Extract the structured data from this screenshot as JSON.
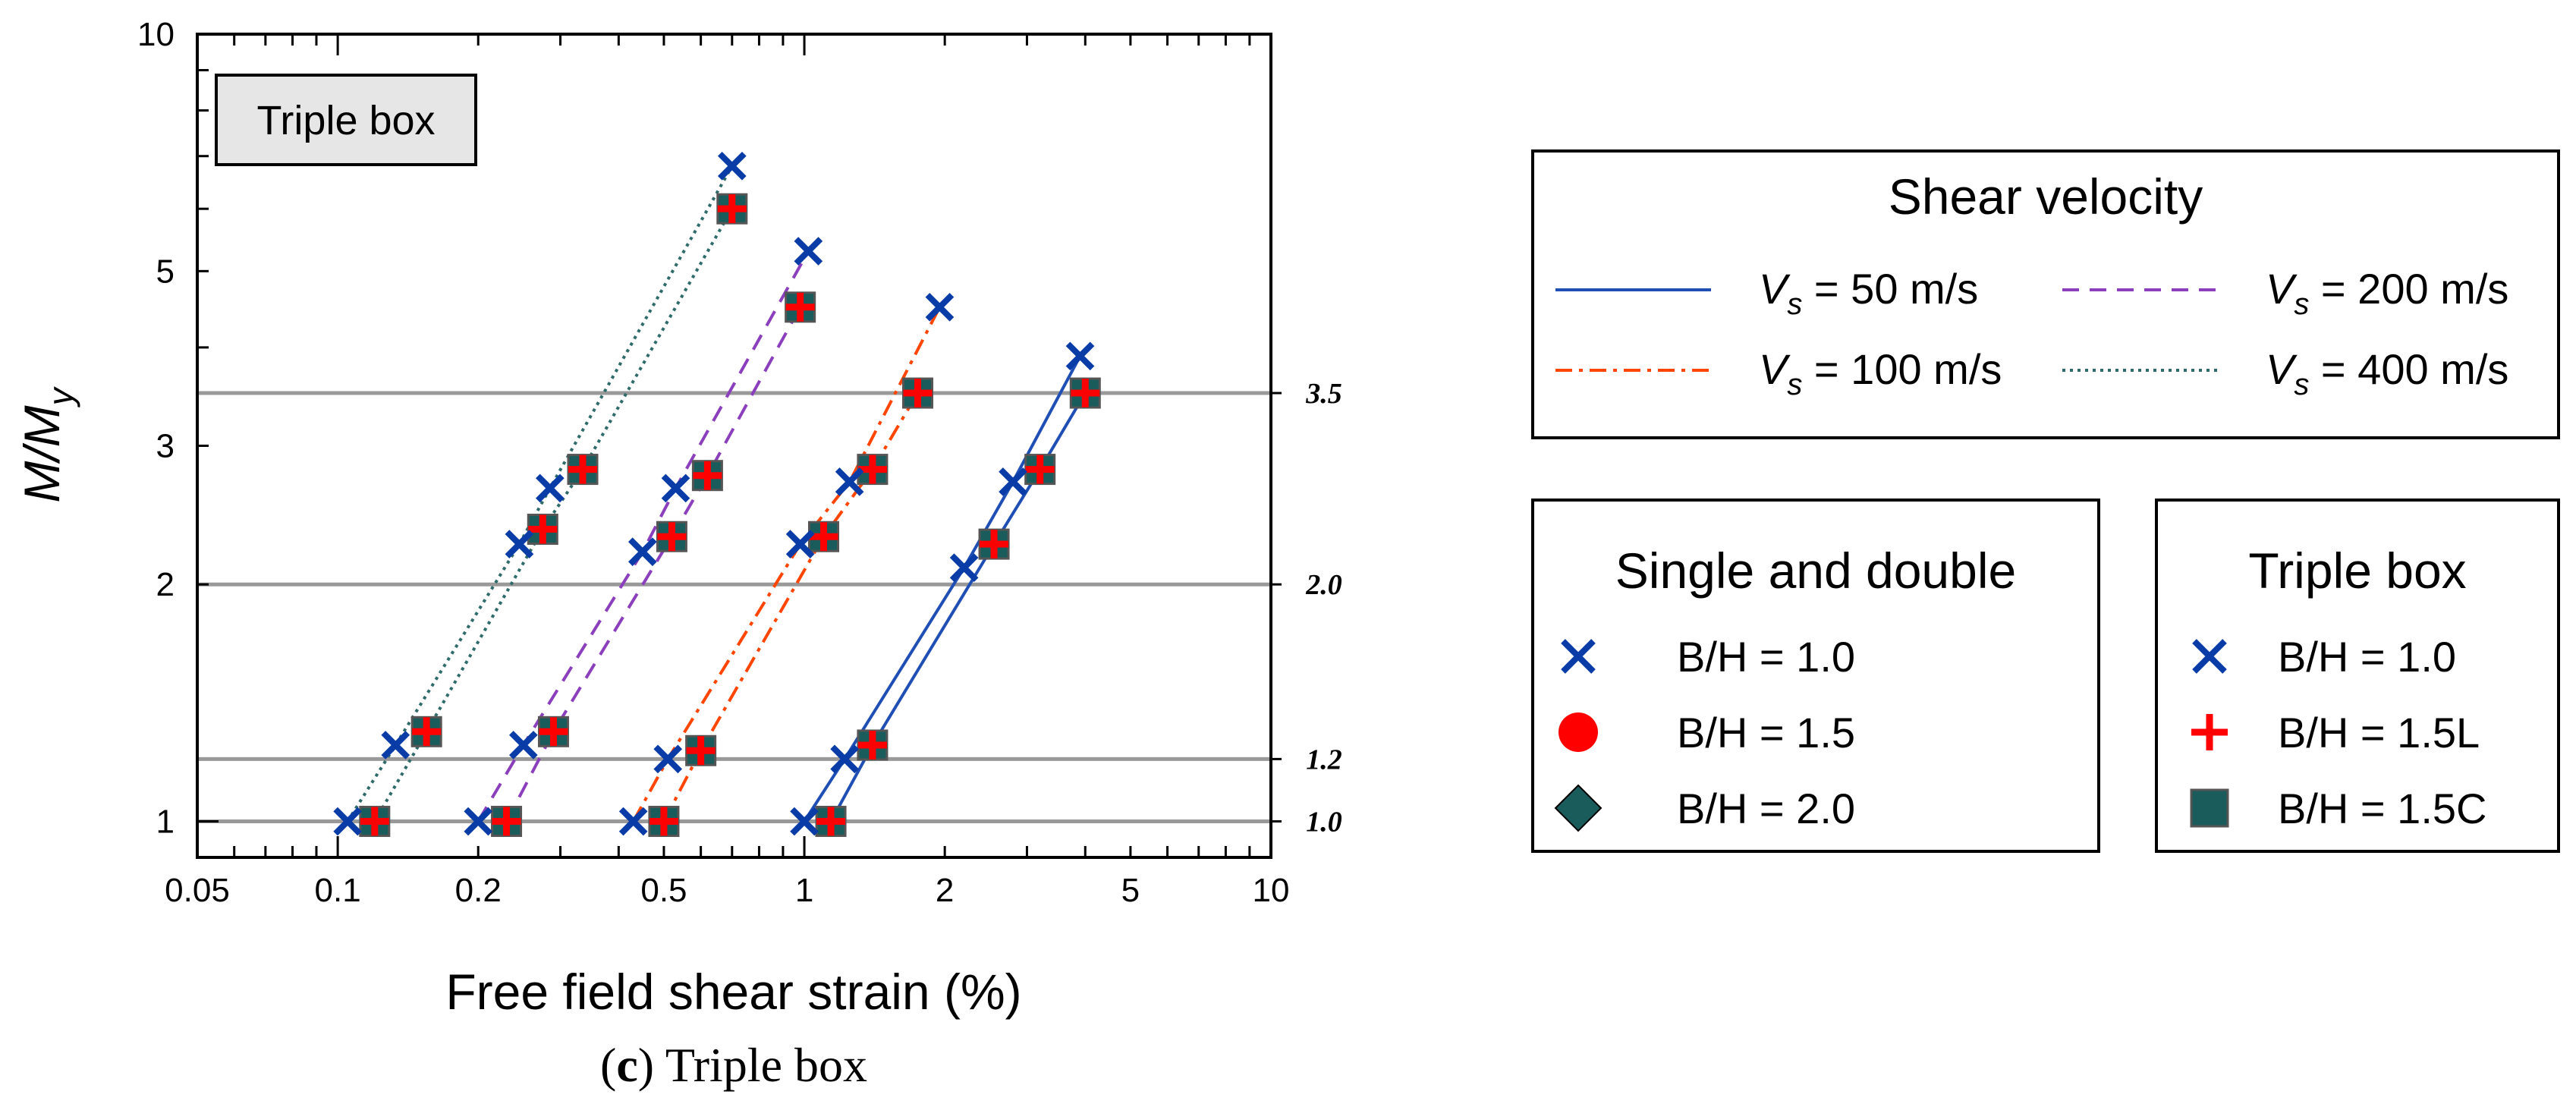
{
  "chart_data": {
    "type": "scatter",
    "panel_label": "Triple box",
    "xscale": "log",
    "yscale": "log",
    "xlim": [
      0.05,
      10
    ],
    "ylim": [
      0.9,
      10
    ],
    "xlabel": "Free field shear strain (%)",
    "ylabel": {
      "main": "M/M",
      "sub": "y"
    },
    "x_ticks": [
      "0.05",
      "0.1",
      "0.2",
      "0.5",
      "1",
      "2",
      "5",
      "10"
    ],
    "y_ticks": [
      "1",
      "2",
      "3",
      "5",
      "10"
    ],
    "reference_lines": [
      {
        "y": 1.0,
        "label": "1.0"
      },
      {
        "y": 1.2,
        "label": "1.2"
      },
      {
        "y": 2.0,
        "label": "2.0"
      },
      {
        "y": 3.5,
        "label": "3.5"
      }
    ],
    "series": [
      {
        "vs": "50 m/s",
        "color": "#1f4fb4",
        "dash": "solid",
        "bh10": [
          [
            1.0,
            1.0
          ],
          [
            1.22,
            1.2
          ],
          [
            2.2,
            2.1
          ],
          [
            2.8,
            2.7
          ],
          [
            3.9,
            3.9
          ]
        ],
        "bh15": [
          [
            1.14,
            1.0
          ],
          [
            1.4,
            1.25
          ],
          [
            2.55,
            2.25
          ],
          [
            3.2,
            2.8
          ],
          [
            4.0,
            3.5
          ]
        ]
      },
      {
        "vs": "100 m/s",
        "color": "#ff4500",
        "dash": "dashdot",
        "bh10": [
          [
            0.43,
            1.0
          ],
          [
            0.51,
            1.2
          ],
          [
            0.98,
            2.25
          ],
          [
            1.25,
            2.7
          ],
          [
            1.95,
            4.5
          ]
        ],
        "bh15": [
          [
            0.5,
            1.0
          ],
          [
            0.6,
            1.23
          ],
          [
            1.1,
            2.3
          ],
          [
            1.4,
            2.8
          ],
          [
            1.75,
            3.5
          ]
        ]
      },
      {
        "vs": "200 m/s",
        "color": "#8b3fbd",
        "dash": "dashed",
        "bh10": [
          [
            0.2,
            1.0
          ],
          [
            0.25,
            1.25
          ],
          [
            0.45,
            2.2
          ],
          [
            0.53,
            2.65
          ],
          [
            1.02,
            5.3
          ]
        ],
        "bh15": [
          [
            0.23,
            1.0
          ],
          [
            0.29,
            1.3
          ],
          [
            0.52,
            2.3
          ],
          [
            0.62,
            2.75
          ],
          [
            0.98,
            4.5
          ]
        ]
      },
      {
        "vs": "400 m/s",
        "color": "#2f6b6b",
        "dash": "dotted",
        "bh10": [
          [
            0.105,
            1.0
          ],
          [
            0.133,
            1.25
          ],
          [
            0.245,
            2.25
          ],
          [
            0.285,
            2.65
          ],
          [
            0.7,
            6.8
          ]
        ],
        "bh15": [
          [
            0.12,
            1.0
          ],
          [
            0.155,
            1.3
          ],
          [
            0.275,
            2.35
          ],
          [
            0.335,
            2.8
          ],
          [
            0.7,
            6.0
          ]
        ]
      }
    ]
  },
  "legend_shear": {
    "title": "Shear velocity",
    "prefix": "V",
    "sub": "s",
    "entries": [
      " = 50 m/s",
      " = 100 m/s",
      " = 200 m/s",
      " = 400 m/s"
    ]
  },
  "legend_single": {
    "title": "Single and double",
    "entries": [
      "B/H = 1.0",
      "B/H = 1.5",
      "B/H = 2.0"
    ]
  },
  "legend_triple": {
    "title": "Triple box",
    "entries": [
      "B/H = 1.0",
      "B/H = 1.5L",
      "B/H = 1.5C"
    ]
  },
  "caption": {
    "letter": "c",
    "text": "Triple box"
  },
  "colors": {
    "cross": "#0a3ca8",
    "plus": "#ff0000",
    "square": "#1a5c5c",
    "diamond": "#1a5c5c",
    "circle": "#ff0000",
    "refline": "#999999"
  }
}
